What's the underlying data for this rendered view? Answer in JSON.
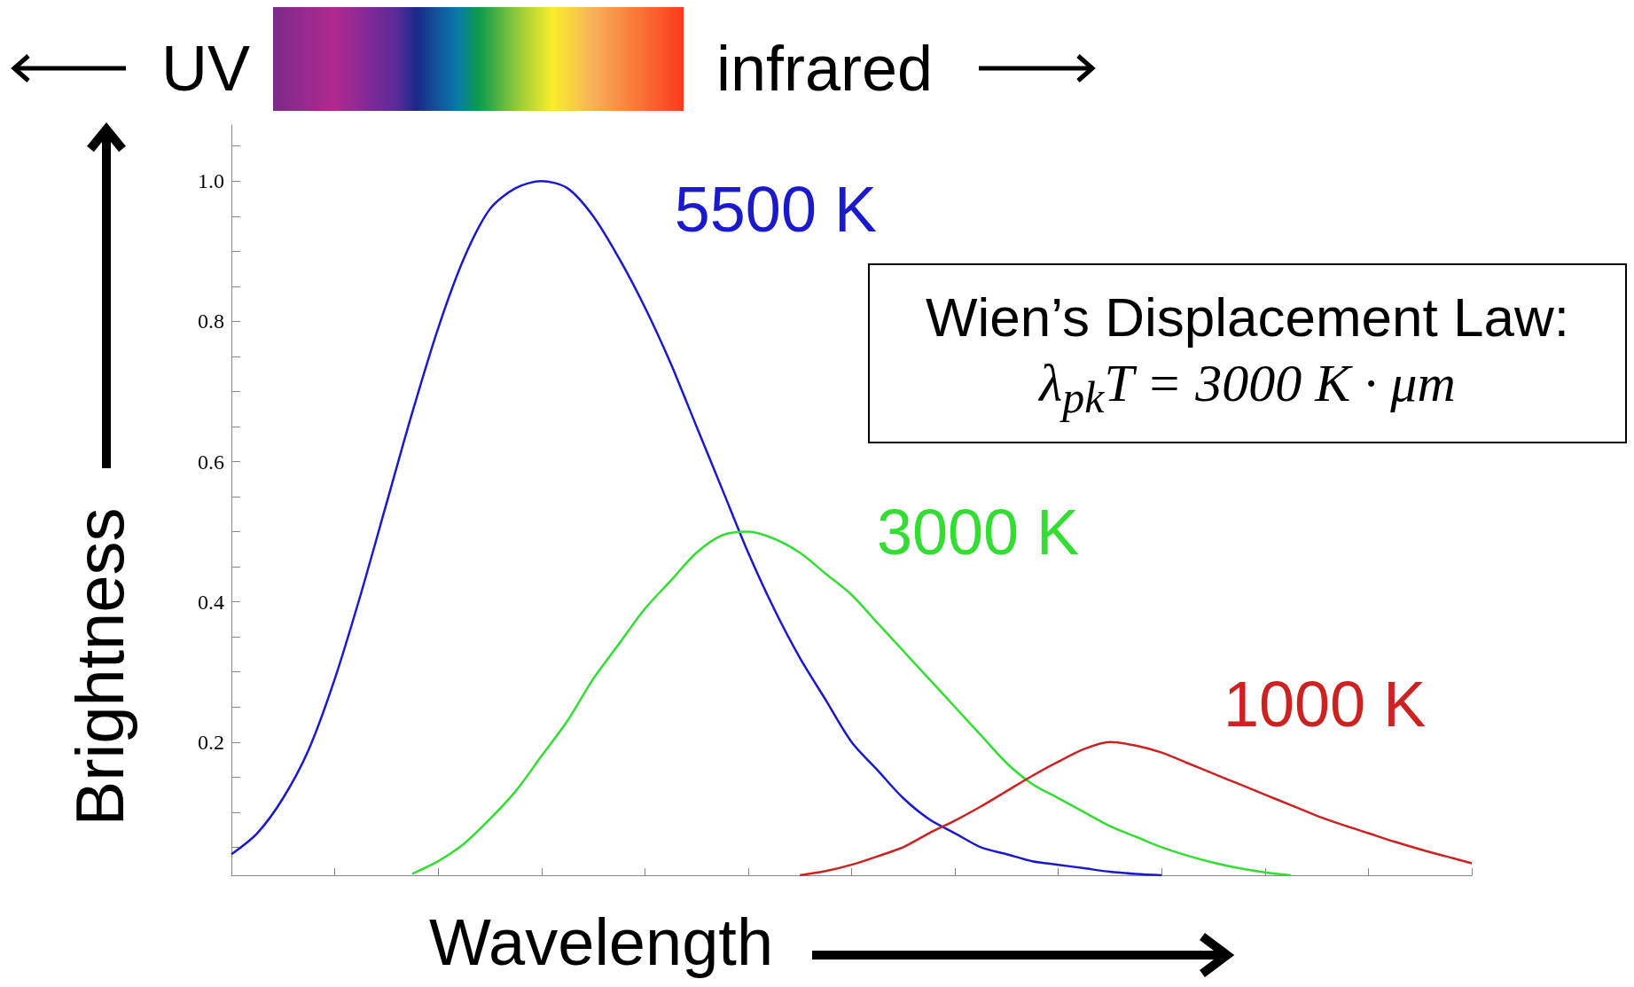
{
  "chart_data": {
    "type": "line",
    "xlabel": "Wavelength",
    "ylabel": "Brightness",
    "annotations": [
      "UV",
      "infrared",
      "Wien’s Displacement Law:",
      "λ$_{pk}$T = 3000 K · μm"
    ],
    "categories": [
      null,
      null,
      null,
      null,
      null,
      null,
      null,
      null,
      null,
      null,
      null,
      null,
      null,
      null,
      null,
      null,
      null,
      null,
      null,
      null,
      null,
      null,
      null,
      null,
      null,
      null,
      null,
      null,
      null,
      null,
      null,
      null,
      null,
      null,
      null,
      null,
      null,
      null,
      null,
      null,
      null,
      null,
      null,
      null,
      null,
      null,
      null,
      null,
      null
    ],
    "series": [
      {
        "name": "5500 K",
        "color": "#1a1acc",
        "values": [
          0.04,
          0.07,
          0.12,
          0.19,
          0.29,
          0.41,
          0.54,
          0.67,
          0.79,
          0.89,
          0.96,
          0.99,
          1.0,
          0.99,
          0.95,
          0.89,
          0.82,
          0.74,
          0.65,
          0.56,
          0.47,
          0.39,
          0.32,
          0.26,
          0.2,
          0.16,
          0.12,
          0.09,
          0.07,
          0.05,
          0.04,
          0.03,
          0.025,
          0.02,
          0.015,
          0.012,
          0.01,
          null,
          null,
          null,
          null,
          null,
          null,
          null,
          null,
          null,
          null,
          null,
          null
        ]
      },
      {
        "name": "3000 K",
        "color": "#33dd33",
        "values": [
          null,
          null,
          null,
          null,
          null,
          null,
          null,
          0.012,
          0.03,
          0.055,
          0.09,
          0.13,
          0.18,
          0.23,
          0.29,
          0.34,
          0.39,
          0.43,
          0.47,
          0.495,
          0.5,
          0.49,
          0.47,
          0.44,
          0.41,
          0.37,
          0.33,
          0.29,
          0.25,
          0.21,
          0.17,
          0.14,
          0.12,
          0.1,
          0.08,
          0.065,
          0.05,
          0.038,
          0.028,
          0.02,
          0.014,
          0.01,
          null,
          null,
          null,
          null,
          null,
          null,
          null
        ]
      },
      {
        "name": "1000 K",
        "color": "#cc2222",
        "values": [
          null,
          null,
          null,
          null,
          null,
          null,
          null,
          null,
          null,
          null,
          null,
          null,
          null,
          null,
          null,
          null,
          null,
          null,
          null,
          null,
          null,
          null,
          0.01,
          0.016,
          0.025,
          0.037,
          0.05,
          0.07,
          0.088,
          0.108,
          0.13,
          0.152,
          0.172,
          0.19,
          0.2,
          0.195,
          0.185,
          0.17,
          0.155,
          0.14,
          0.125,
          0.11,
          0.095,
          0.082,
          0.07,
          0.058,
          0.047,
          0.037,
          0.027
        ]
      }
    ],
    "ylim": [
      0.01,
      1.08
    ],
    "yticks": [
      {
        "value": 0.05,
        "label": null
      },
      {
        "value": 0.1,
        "label": null
      },
      {
        "value": 0.15,
        "label": null
      },
      0.2,
      {
        "value": 0.25,
        "label": null
      },
      {
        "value": 0.3,
        "label": null
      },
      {
        "value": 0.35,
        "label": null
      },
      0.4,
      {
        "value": 0.45,
        "label": null
      },
      {
        "value": 0.5,
        "label": null
      },
      {
        "value": 0.55,
        "label": null
      },
      0.6,
      {
        "value": 0.65,
        "label": null
      },
      {
        "value": 0.7,
        "label": null
      },
      {
        "value": 0.75,
        "label": null
      },
      0.8,
      {
        "value": 0.85,
        "label": null
      },
      {
        "value": 0.9,
        "label": null
      },
      {
        "value": 0.95,
        "label": null
      },
      {
        "value": 1.0,
        "label": "1.0"
      },
      {
        "value": 1.05,
        "label": null
      }
    ],
    "grid": false,
    "legend": false
  }
}
